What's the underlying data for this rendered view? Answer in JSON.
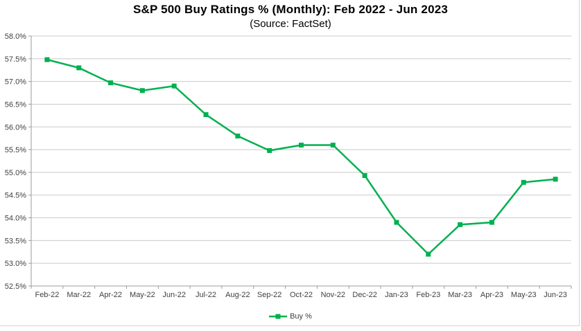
{
  "chart_data": {
    "type": "line",
    "title": "S&P 500 Buy Ratings % (Monthly): Feb 2022 - Jun 2023",
    "subtitle": "(Source: FactSet)",
    "categories": [
      "Feb-22",
      "Mar-22",
      "Apr-22",
      "May-22",
      "Jun-22",
      "Jul-22",
      "Aug-22",
      "Sep-22",
      "Oct-22",
      "Nov-22",
      "Dec-22",
      "Jan-23",
      "Feb-23",
      "Mar-23",
      "Apr-23",
      "May-23",
      "Jun-23"
    ],
    "series": [
      {
        "name": "Buy %",
        "color": "#00b050",
        "marker": "square",
        "values": [
          57.48,
          57.3,
          56.97,
          56.8,
          56.9,
          56.27,
          55.8,
          55.48,
          55.6,
          55.6,
          54.93,
          53.9,
          53.2,
          53.85,
          53.9,
          54.78,
          54.85
        ]
      }
    ],
    "ylim": [
      52.5,
      58.0
    ],
    "y_tick_step": 0.5,
    "y_tick_labels": [
      "52.5%",
      "53.0%",
      "53.5%",
      "54.0%",
      "54.5%",
      "55.0%",
      "55.5%",
      "56.0%",
      "56.5%",
      "57.0%",
      "57.5%",
      "58.0%"
    ],
    "xlabel": "",
    "ylabel": "",
    "grid": true,
    "legend": {
      "position": "bottom",
      "entries": [
        "Buy %"
      ]
    }
  },
  "colors": {
    "line": "#00b050",
    "grid": "#c9c9c9",
    "axis": "#9b9b9b",
    "tick_label": "#3f3f3f",
    "title": "#000000",
    "frame_border": "#d4d4d4"
  }
}
